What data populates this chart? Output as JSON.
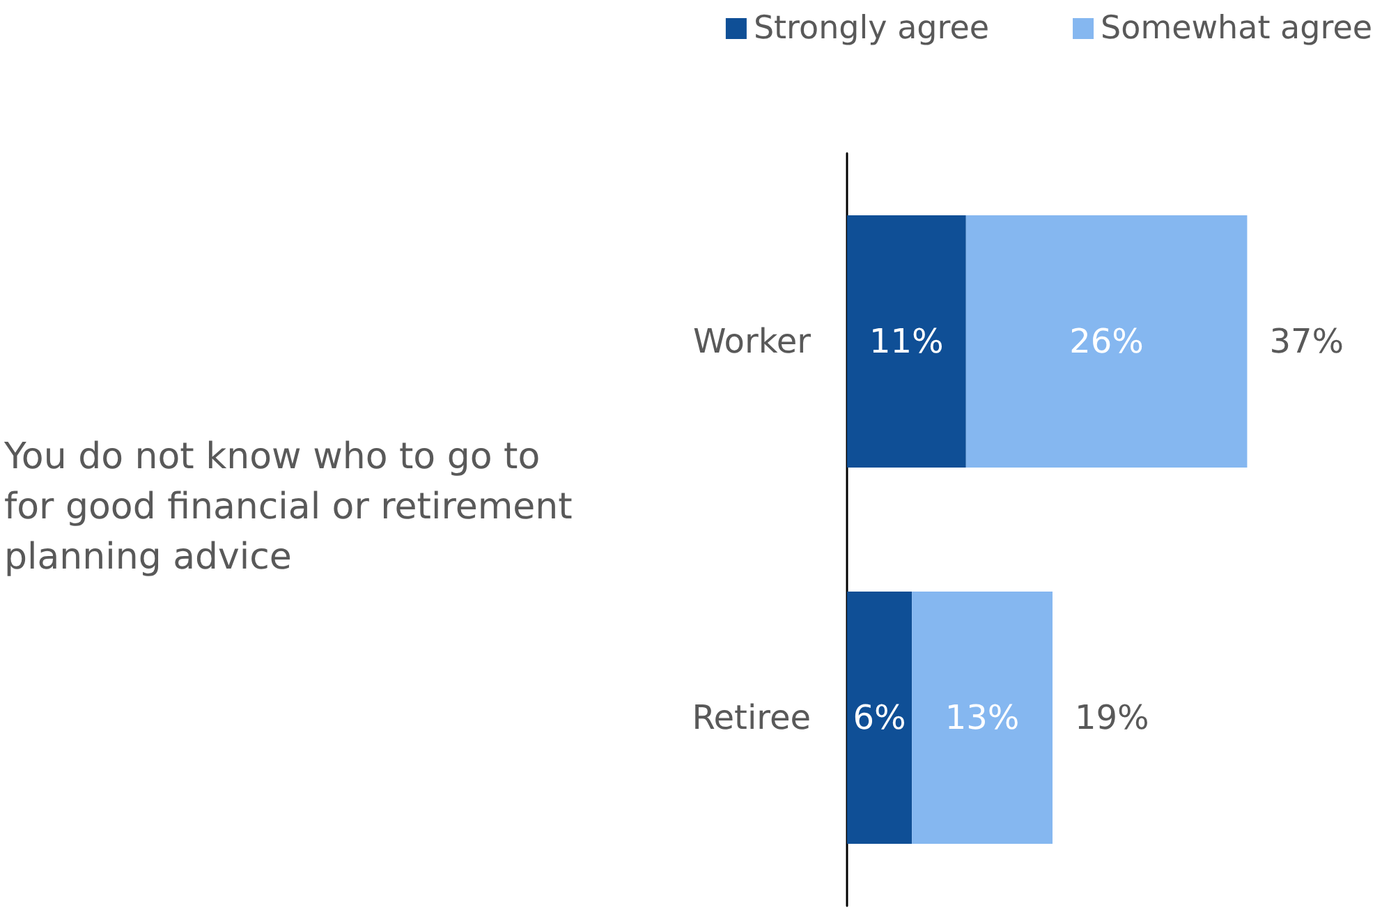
{
  "chart_data": {
    "type": "bar",
    "orientation": "horizontal",
    "stacked": true,
    "ylabel": "You do not know who to go to for good financial or retirement planning advice",
    "categories": [
      "Worker",
      "Retiree"
    ],
    "series": [
      {
        "name": "Strongly agree",
        "color": "#0f4f96",
        "values": [
          11,
          6
        ],
        "value_labels": [
          "11%",
          "6%"
        ]
      },
      {
        "name": "Somewhat agree",
        "color": "#85b7f0",
        "values": [
          26,
          13
        ],
        "value_labels": [
          "26%",
          "13%"
        ]
      }
    ],
    "totals": [
      "37%",
      "19%"
    ],
    "legend": "top right",
    "grid": false
  }
}
